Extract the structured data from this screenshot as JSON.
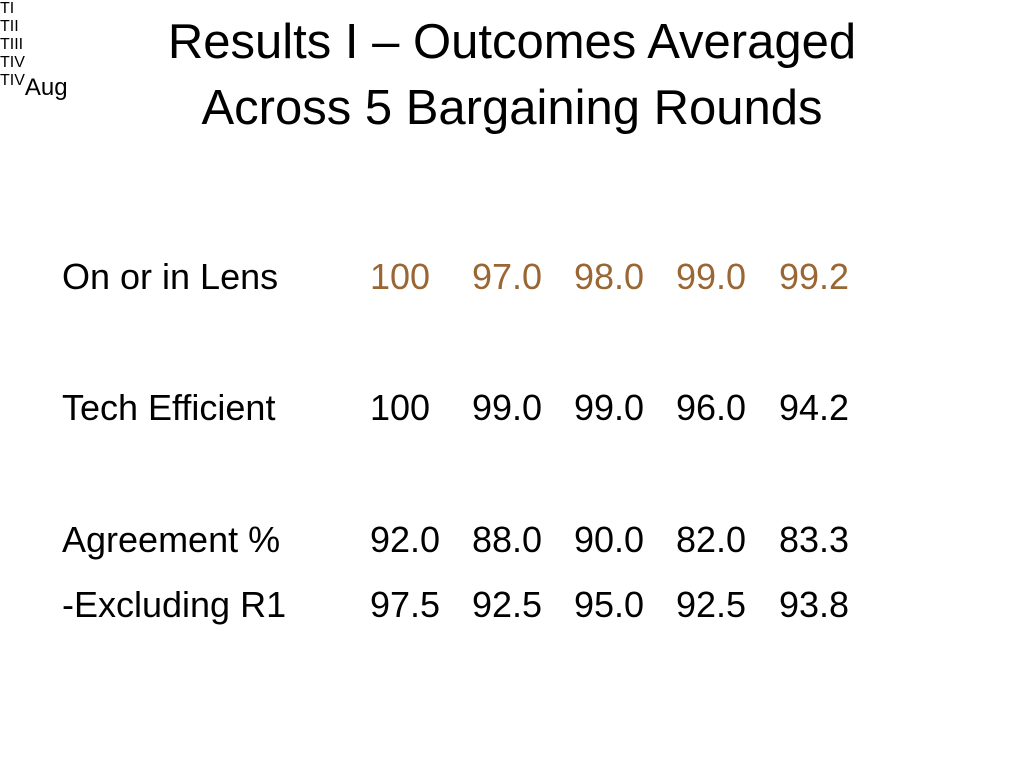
{
  "title": [
    "Results I – Outcomes Averaged",
    "Across 5 Bargaining Rounds"
  ],
  "table": {
    "header": [
      {
        "text": "TI"
      },
      {
        "text": "TII"
      },
      {
        "text": "TIII"
      },
      {
        "text": "TIV"
      },
      {
        "text": "TIV",
        "sub": "Aug"
      }
    ],
    "rows": [
      {
        "label": "On or in Lens",
        "cells": [
          "100",
          "97.0",
          "98.0",
          "99.0",
          "99.2"
        ]
      },
      {
        "label": "Tech Efficient",
        "cells": [
          "100",
          "99.0",
          "99.0",
          "96.0",
          "94.2"
        ]
      },
      {
        "label": "Agreement %",
        "cells": [
          "92.0",
          "88.0",
          "90.0",
          "82.0",
          "83.3"
        ]
      },
      {
        "label": "-Excluding R1",
        "cells": [
          "97.5",
          "92.5",
          "95.0",
          "92.5",
          "93.8"
        ]
      }
    ]
  }
}
